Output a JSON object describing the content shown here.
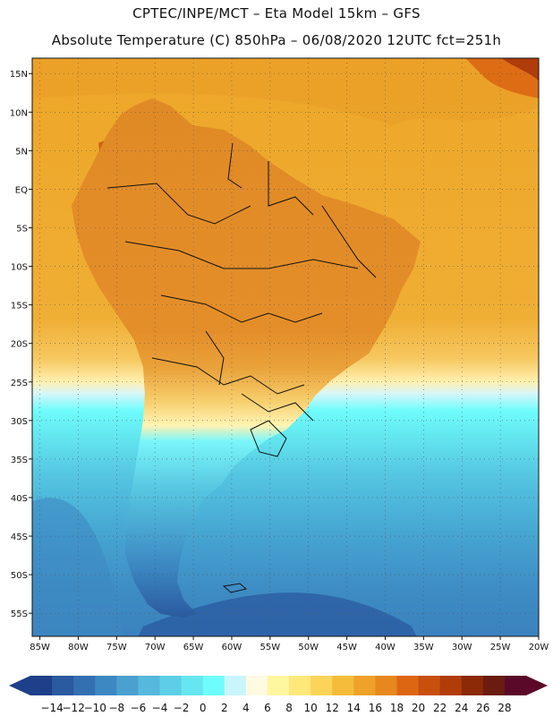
{
  "header": {
    "line1": "CPTEC/INPE/MCT –  Eta Model 15km – GFS",
    "line2": "Absolute Temperature (C) 850hPa – 06/08/2020 12UTC fct=251h"
  },
  "map": {
    "lat_labels": [
      "15N",
      "10N",
      "5N",
      "EQ",
      "5S",
      "10S",
      "15S",
      "20S",
      "25S",
      "30S",
      "35S",
      "40S",
      "45S",
      "50S",
      "55S"
    ],
    "lat_values": [
      15,
      10,
      5,
      0,
      -5,
      -10,
      -15,
      -20,
      -25,
      -30,
      -35,
      -40,
      -45,
      -50,
      -55
    ],
    "lon_labels": [
      "85W",
      "80W",
      "75W",
      "70W",
      "65W",
      "60W",
      "55W",
      "50W",
      "45W",
      "40W",
      "35W",
      "30W",
      "25W",
      "20W"
    ],
    "lon_values": [
      -85,
      -80,
      -75,
      -70,
      -65,
      -60,
      -55,
      -50,
      -45,
      -40,
      -35,
      -30,
      -25,
      -20
    ],
    "lat_range": [
      -58,
      17
    ],
    "lon_range": [
      -86,
      -20
    ]
  },
  "colorbar": {
    "labels": [
      "-14",
      "-12",
      "-10",
      "-8",
      "-6",
      "-4",
      "-2",
      "0",
      "2",
      "4",
      "6",
      "8",
      "10",
      "12",
      "14",
      "16",
      "18",
      "20",
      "22",
      "24",
      "26",
      "28"
    ],
    "colors": [
      "#1e3f8a",
      "#2a5aa0",
      "#3370b2",
      "#3d88c2",
      "#4aa0cf",
      "#55b8dc",
      "#5ccfe6",
      "#66e6f0",
      "#6efcfc",
      "#c8f6fc",
      "#fffae0",
      "#fff6a0",
      "#ffe87a",
      "#fcd45a",
      "#f4bc3a",
      "#eea22a",
      "#e6881e",
      "#dc6612",
      "#c8500c",
      "#b03c0a",
      "#8c2a08",
      "#6a1c10",
      "#5a0a28"
    ]
  },
  "colors": {
    "border": "#111111",
    "grid": "#555555",
    "ocean_warm": "#eeae30",
    "ocean_cold": "#3db4d8"
  }
}
